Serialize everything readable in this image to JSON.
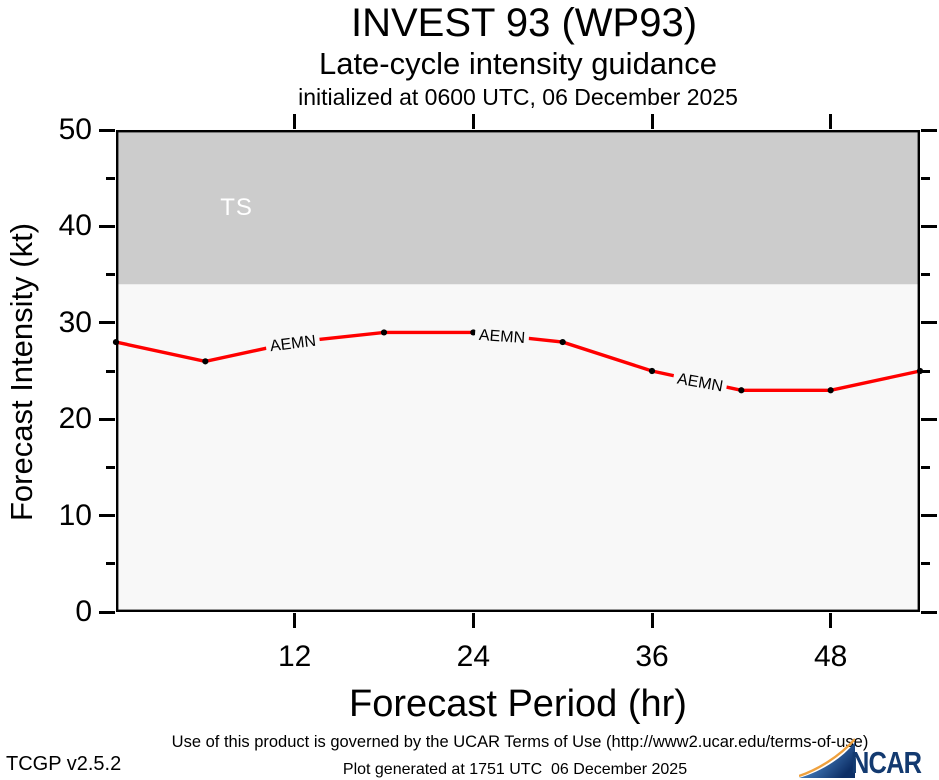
{
  "header": {
    "title": "INVEST 93 (WP93)",
    "subtitle": "Late-cycle intensity guidance",
    "init_line": "initialized at 0600 UTC, 06 December 2025"
  },
  "chart_data": {
    "type": "line",
    "title": "INVEST 93 (WP93)",
    "xlabel": "Forecast Period (hr)",
    "ylabel": "Forecast Intensity (kt)",
    "xlim": [
      0,
      54
    ],
    "ylim": [
      0,
      50
    ],
    "xticks": [
      12,
      24,
      36,
      48
    ],
    "yticks": [
      0,
      10,
      20,
      30,
      40,
      50
    ],
    "yticks_minor": [
      5,
      15,
      25,
      35,
      45
    ],
    "grid": "off",
    "legend": "labels-on-line",
    "series": [
      {
        "name": "AEMN",
        "color": "#ff0000",
        "x": [
          0,
          6,
          12,
          18,
          24,
          30,
          36,
          42,
          48,
          54
        ],
        "values": [
          28,
          26,
          28,
          29,
          29,
          28,
          25,
          23,
          23,
          25
        ]
      }
    ],
    "markers_hidden_at_x": [
      12
    ],
    "threshold_band": {
      "label": "TS",
      "from_kt": 34,
      "to_kt": 50,
      "color": "#cccccc",
      "label_color": "#ffffff",
      "label_at": {
        "hr": 8.1,
        "kt": 41.9
      }
    },
    "line_labels": [
      {
        "text": "AEMN",
        "hr": 11.9,
        "kt": 27.75,
        "rotate_deg": -7
      },
      {
        "text": "AEMN",
        "hr": 25.9,
        "kt": 28.55,
        "rotate_deg": 4
      },
      {
        "text": "AEMN",
        "hr": 39.2,
        "kt": 23.8,
        "rotate_deg": 10
      }
    ]
  },
  "footer": {
    "terms": "Use of this product is governed by the UCAR Terms of Use (http://www2.ucar.edu/terms-of-use)",
    "version": "TCGP v2.5.2",
    "generated": "Plot generated at 1751 UTC  06 December 2025",
    "logo_text": "NCAR"
  },
  "colors": {
    "plot_bg": "#f8f8f8",
    "band_gray": "#cccccc",
    "line_red": "#ff0000",
    "axis_black": "#000000",
    "ncar_navy": "#133a70",
    "ncar_orange": "#efa13e"
  }
}
